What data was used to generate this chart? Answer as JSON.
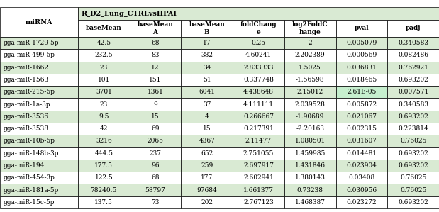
{
  "title": "R_D2_Lung_CTRLvsHPAI",
  "col_headers": [
    "baseMean",
    "baseMean\nA",
    "baseMean\nB",
    "foldChang\ne",
    "log2FoldC\nhange",
    "pval",
    "padj"
  ],
  "row_labels": [
    "gga-miR-1729-5p",
    "gga-miR-499-5p",
    "gga-miR-1662",
    "gga-miR-1563",
    "gga-miR-215-5p",
    "gga-miR-1a-3p",
    "gga-miR-3536",
    "gga-miR-3538",
    "gga-miR-10b-5p",
    "gga-miR-148b-3p",
    "gga-miR-194",
    "gga-miR-454-3p",
    "gga-miR-181a-5p",
    "gga-miR-15c-5p"
  ],
  "table_data": [
    [
      "42.5",
      "68",
      "17",
      "0.25",
      "-2",
      "0.005079",
      "0.340583"
    ],
    [
      "232.5",
      "83",
      "382",
      "4.60241",
      "2.202389",
      "0.000569",
      "0.082486"
    ],
    [
      "23",
      "12",
      "34",
      "2.833333",
      "1.5025",
      "0.036831",
      "0.762921"
    ],
    [
      "101",
      "151",
      "51",
      "0.337748",
      "-1.56598",
      "0.018465",
      "0.693202"
    ],
    [
      "3701",
      "1361",
      "6041",
      "4.438648",
      "2.15012",
      "2.61E-05",
      "0.007571"
    ],
    [
      "23",
      "9",
      "37",
      "4.111111",
      "2.039528",
      "0.005872",
      "0.340583"
    ],
    [
      "9.5",
      "15",
      "4",
      "0.266667",
      "-1.90689",
      "0.021067",
      "0.693202"
    ],
    [
      "42",
      "69",
      "15",
      "0.217391",
      "-2.20163",
      "0.002315",
      "0.223814"
    ],
    [
      "3216",
      "2065",
      "4367",
      "2.11477",
      "1.080501",
      "0.031607",
      "0.76025"
    ],
    [
      "444.5",
      "237",
      "652",
      "2.751055",
      "1.459985",
      "0.014481",
      "0.693202"
    ],
    [
      "177.5",
      "96",
      "259",
      "2.697917",
      "1.431846",
      "0.023904",
      "0.693202"
    ],
    [
      "122.5",
      "68",
      "177",
      "2.602941",
      "1.380143",
      "0.03408",
      "0.76025"
    ],
    [
      "78240.5",
      "58797",
      "97684",
      "1.661377",
      "0.73238",
      "0.030956",
      "0.76025"
    ],
    [
      "137.5",
      "73",
      "202",
      "2.767123",
      "1.468387",
      "0.023272",
      "0.693202"
    ]
  ],
  "highlight_row": 4,
  "highlight_col": 5,
  "highlight_cell_color": "#c6efce",
  "row_bg_color_odd": "#ffffff",
  "row_bg_color_even": "#d9ead3",
  "header_bg_color": "#ffffff",
  "title_bg_color": "#d9ead3",
  "row_label_bg": "#d9ead3",
  "border_color": "#000000",
  "font_size": 6.5,
  "header_font_size": 7.0
}
